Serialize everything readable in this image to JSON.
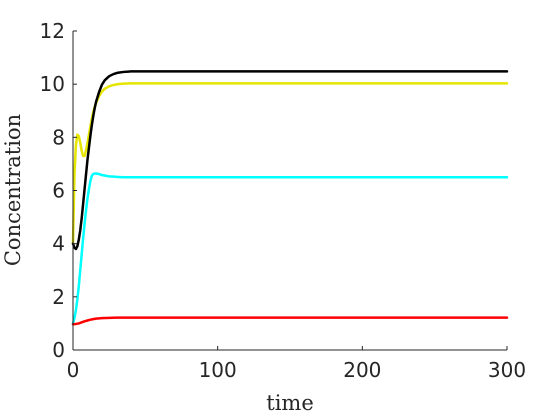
{
  "chart_data": {
    "type": "line",
    "xlabel": "time",
    "ylabel": "Concentration",
    "xlim": [
      0,
      300
    ],
    "ylim": [
      0,
      12
    ],
    "xticks": [
      0,
      100,
      200,
      300
    ],
    "yticks": [
      0,
      2,
      4,
      6,
      8,
      10,
      12
    ],
    "xtick_labels": [
      "0",
      "100",
      "200",
      "300"
    ],
    "ytick_labels": [
      "0",
      "2",
      "4",
      "6",
      "8",
      "10",
      "12"
    ],
    "grid": false,
    "legend": "none",
    "series": [
      {
        "color": "#e5e500",
        "x": [
          0,
          1,
          2,
          3,
          4,
          5,
          6,
          7,
          8,
          9,
          10,
          11,
          12,
          13,
          14,
          15,
          16,
          18,
          20,
          22,
          25,
          28,
          31,
          35,
          40,
          45,
          50,
          60,
          80,
          100,
          150,
          200,
          250,
          300
        ],
        "y": [
          4.0,
          6.6,
          7.7,
          8.1,
          8.05,
          7.8,
          7.5,
          7.3,
          7.3,
          7.5,
          7.8,
          8.1,
          8.4,
          8.7,
          8.95,
          9.15,
          9.3,
          9.55,
          9.72,
          9.83,
          9.92,
          9.97,
          10.0,
          10.02,
          10.03,
          10.03,
          10.03,
          10.03,
          10.03,
          10.03,
          10.03,
          10.03,
          10.03,
          10.03
        ]
      },
      {
        "color": "#000000",
        "x": [
          0,
          1,
          2,
          3,
          4,
          5,
          6,
          7,
          8,
          9,
          10,
          11,
          12,
          13,
          14,
          15,
          16,
          18,
          20,
          22,
          25,
          28,
          31,
          35,
          40,
          45,
          50,
          60,
          80,
          100,
          150,
          200,
          250,
          300
        ],
        "y": [
          4.0,
          3.85,
          3.8,
          3.9,
          4.15,
          4.5,
          4.95,
          5.5,
          6.05,
          6.6,
          7.15,
          7.6,
          8.05,
          8.45,
          8.8,
          9.1,
          9.35,
          9.7,
          9.98,
          10.15,
          10.3,
          10.38,
          10.43,
          10.46,
          10.48,
          10.48,
          10.48,
          10.48,
          10.48,
          10.48,
          10.48,
          10.48,
          10.48,
          10.48
        ]
      },
      {
        "color": "#00ffff",
        "x": [
          0,
          1,
          2,
          3,
          4,
          5,
          6,
          7,
          8,
          9,
          10,
          11,
          12,
          13,
          14,
          15,
          16,
          18,
          20,
          22,
          25,
          28,
          31,
          35,
          40,
          45,
          50,
          60,
          80,
          100,
          150,
          200,
          250,
          300
        ],
        "y": [
          1.0,
          1.2,
          1.5,
          1.9,
          2.4,
          3.0,
          3.6,
          4.2,
          4.75,
          5.25,
          5.7,
          6.05,
          6.35,
          6.55,
          6.62,
          6.64,
          6.64,
          6.62,
          6.58,
          6.56,
          6.53,
          6.52,
          6.51,
          6.5,
          6.5,
          6.5,
          6.5,
          6.5,
          6.5,
          6.5,
          6.5,
          6.5,
          6.5,
          6.5
        ]
      },
      {
        "color": "#ff0000",
        "x": [
          0,
          2,
          4,
          6,
          8,
          10,
          12,
          14,
          16,
          18,
          20,
          25,
          30,
          35,
          40,
          50,
          60,
          80,
          100,
          150,
          200,
          250,
          300
        ],
        "y": [
          0.97,
          0.98,
          1.0,
          1.04,
          1.08,
          1.11,
          1.14,
          1.16,
          1.18,
          1.19,
          1.2,
          1.21,
          1.22,
          1.22,
          1.22,
          1.22,
          1.22,
          1.22,
          1.22,
          1.22,
          1.22,
          1.22,
          1.22
        ]
      }
    ]
  }
}
